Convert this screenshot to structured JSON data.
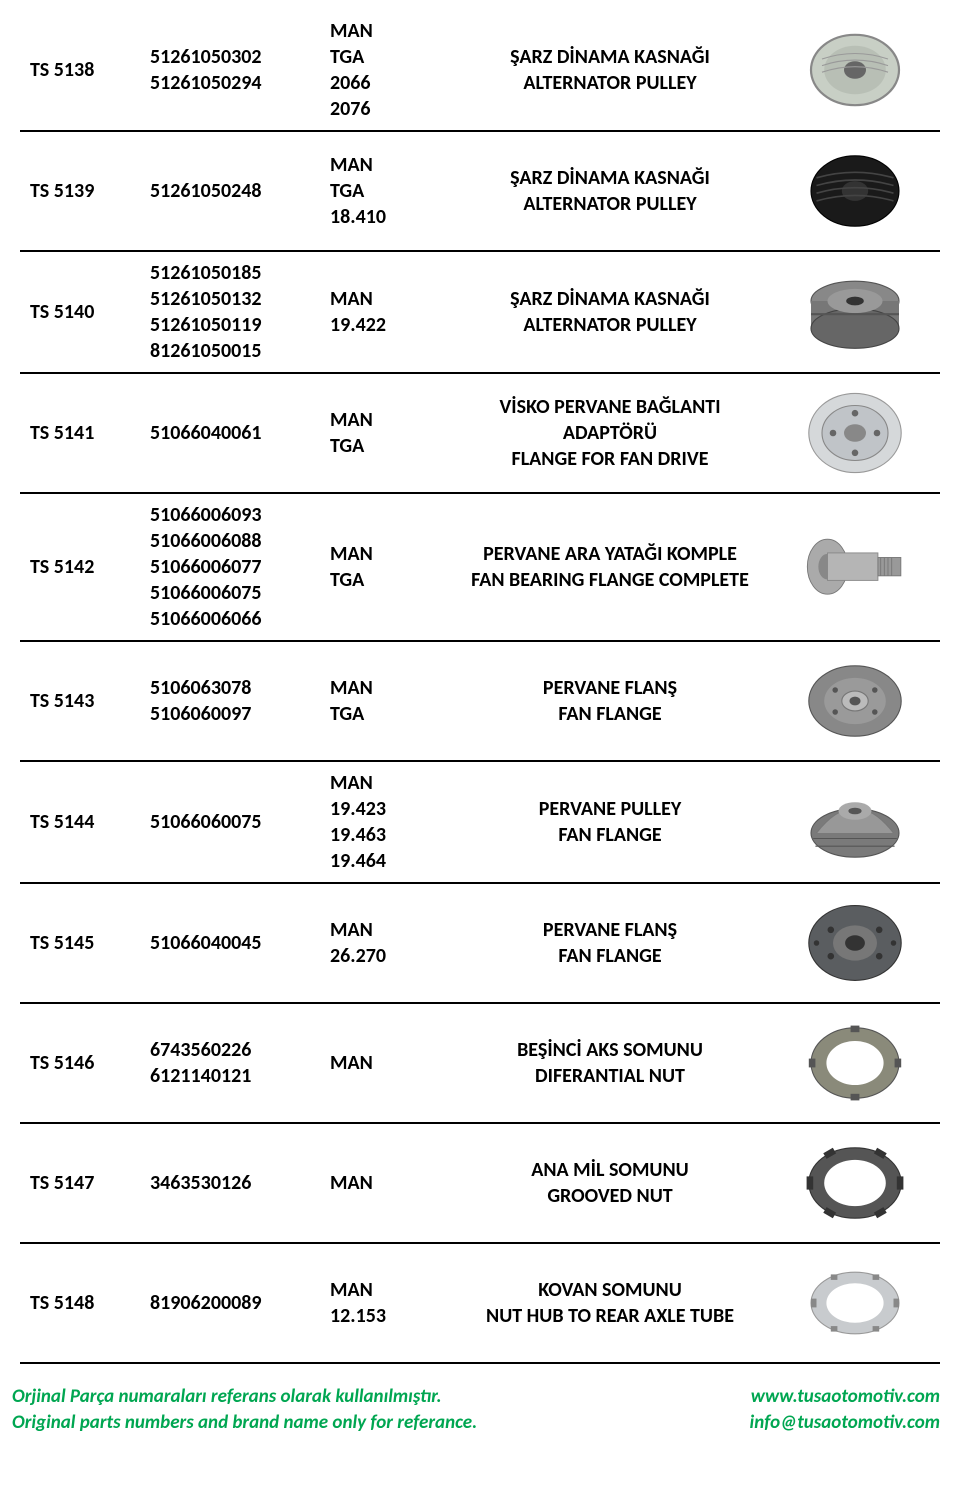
{
  "rows": [
    {
      "code": "TS 5138",
      "oem": [
        "51261050302",
        "51261050294"
      ],
      "model": [
        "MAN",
        "TGA",
        "2066",
        "2076"
      ],
      "desc": [
        "ŞARZ DİNAMA KASNAĞI",
        "ALTERNATOR PULLEY"
      ],
      "img": "pulley-ribbed-silver"
    },
    {
      "code": "TS 5139",
      "oem": [
        "51261050248"
      ],
      "model": [
        "MAN",
        "TGA",
        "18.410"
      ],
      "desc": [
        "ŞARZ DİNAMA KASNAĞI",
        "ALTERNATOR PULLEY"
      ],
      "img": "pulley-ribbed-black"
    },
    {
      "code": "TS 5140",
      "oem": [
        "51261050185",
        "51261050132",
        "51261050119",
        "81261050015"
      ],
      "model": [
        "MAN",
        "19.422"
      ],
      "desc": [
        "ŞARZ DİNAMA KASNAĞI",
        "ALTERNATOR PULLEY"
      ],
      "img": "pulley-vbelt-gray"
    },
    {
      "code": "TS 5141",
      "oem": [
        "51066040061"
      ],
      "model": [
        "MAN",
        "TGA"
      ],
      "desc": [
        "VİSKO PERVANE BAĞLANTI",
        "ADAPTÖRÜ",
        "FLANGE FOR FAN DRIVE"
      ],
      "img": "flange-disc-silver"
    },
    {
      "code": "TS 5142",
      "oem": [
        "51066006093",
        "51066006088",
        "51066006077",
        "51066006075",
        "51066006066"
      ],
      "model": [
        "MAN",
        "TGA"
      ],
      "desc": [
        "PERVANE ARA YATAĞI KOMPLE",
        "FAN BEARING FLANGE COMPLETE"
      ],
      "img": "bearing-shaft"
    },
    {
      "code": "TS 5143",
      "oem": [
        "5106063078",
        "5106060097"
      ],
      "model": [
        "MAN",
        "TGA"
      ],
      "desc": [
        "PERVANE FLANŞ",
        "FAN FLANGE"
      ],
      "img": "flange-pulley-gray"
    },
    {
      "code": "TS 5144",
      "oem": [
        "51066060075"
      ],
      "model": [
        "MAN",
        "19.423",
        "19.463",
        "19.464"
      ],
      "desc": [
        "PERVANE PULLEY",
        "FAN FLANGE"
      ],
      "img": "pulley-dome-gray"
    },
    {
      "code": "TS 5145",
      "oem": [
        "51066040045"
      ],
      "model": [
        "MAN",
        "26.270"
      ],
      "desc": [
        "PERVANE FLANŞ",
        "FAN FLANGE"
      ],
      "img": "flange-hub-dark"
    },
    {
      "code": "TS 5146",
      "oem": [
        "6743560226",
        "6121140121"
      ],
      "model": [
        "MAN"
      ],
      "desc": [
        "BEŞİNCİ AKS SOMUNU",
        "DIFERANTIAL NUT"
      ],
      "img": "nut-ring-notched"
    },
    {
      "code": "TS 5147",
      "oem": [
        "3463530126"
      ],
      "model": [
        "MAN"
      ],
      "desc": [
        "ANA MİL SOMUNU",
        "GROOVED NUT"
      ],
      "img": "nut-grooved-dark"
    },
    {
      "code": "TS 5148",
      "oem": [
        "81906200089"
      ],
      "model": [
        "MAN",
        "12.153"
      ],
      "desc": [
        "KOVAN SOMUNU",
        "NUT HUB TO REAR AXLE TUBE"
      ],
      "img": "nut-hub-silver"
    }
  ],
  "footer": {
    "left": [
      "Orjinal Parça numaraları referans olarak kullanılmıştır.",
      "Original parts numbers and brand name only for referance."
    ],
    "right": [
      "www.tusaotomotiv.com",
      "info@tusaotomotiv.com"
    ]
  },
  "colors": {
    "text": "#000000",
    "footer_green": "#00a651",
    "border": "#000000",
    "bg": "#ffffff"
  }
}
